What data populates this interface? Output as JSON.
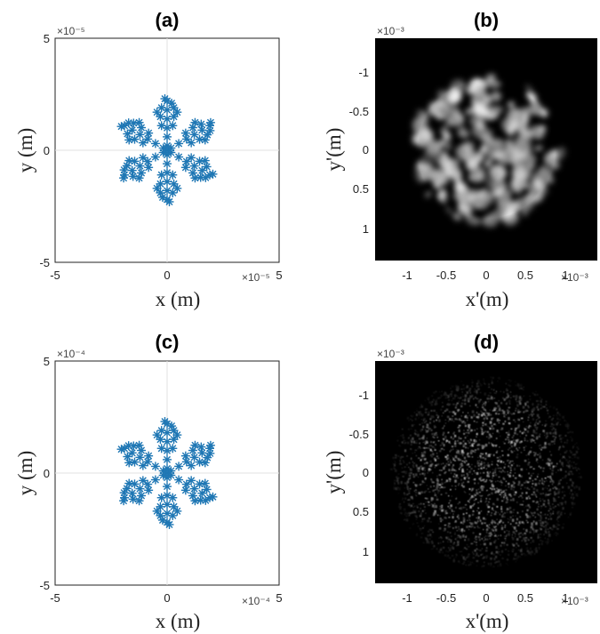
{
  "chart_data": [
    {
      "panel": "a",
      "type": "scatter",
      "title": "(a)",
      "xlabel": "x (m)",
      "ylabel": "y (m)",
      "x_exponent": "×10⁻⁵",
      "y_exponent": "×10⁻⁵",
      "xlim": [
        -5,
        5
      ],
      "ylim": [
        -5,
        5
      ],
      "xticks": [
        "-5",
        "0",
        "5"
      ],
      "yticks": [
        "5",
        "0",
        "-5"
      ],
      "marker": "asterisk",
      "color": "#1f77b4",
      "grid": true,
      "shape": "six-armed snowflake",
      "arm_length": 2.3,
      "points_per_arm": [
        [
          0.2,
          0
        ],
        [
          0.6,
          0
        ],
        [
          1.0,
          0
        ],
        [
          1.4,
          0
        ],
        [
          1.8,
          0
        ],
        [
          2.2,
          0
        ],
        [
          2.3,
          0.1
        ],
        [
          2.1,
          -0.2
        ],
        [
          1.5,
          0.3
        ],
        [
          1.5,
          -0.3
        ],
        [
          1.7,
          0.45
        ],
        [
          1.7,
          -0.45
        ],
        [
          1.1,
          0.25
        ],
        [
          1.1,
          -0.25
        ],
        [
          1.9,
          0.25
        ],
        [
          1.9,
          -0.3
        ]
      ]
    },
    {
      "panel": "b",
      "type": "heatmap",
      "title": "(b)",
      "xlabel": "x'(m)",
      "ylabel": "y'(m)",
      "x_exponent": "×10⁻³",
      "y_exponent": "×10⁻³",
      "xlim": [
        -1.4,
        1.4
      ],
      "ylim": [
        -1.4,
        1.4
      ],
      "xticks": [
        "-1",
        "-0.5",
        "0",
        "0.5",
        "1"
      ],
      "yticks": [
        "-1",
        "-0.5",
        "0",
        "0.5",
        "1"
      ],
      "colormap": "gray",
      "description_pattern": "coarse speckle within disc",
      "disc_radius": 0.95,
      "speckle_scale": 0.12
    },
    {
      "panel": "c",
      "type": "scatter",
      "title": "(c)",
      "xlabel": "x (m)",
      "ylabel": "y (m)",
      "x_exponent": "×10⁻⁴",
      "y_exponent": "×10⁻⁴",
      "xlim": [
        -5,
        5
      ],
      "ylim": [
        -5,
        5
      ],
      "xticks": [
        "-5",
        "0",
        "5"
      ],
      "yticks": [
        "5",
        "0",
        "-5"
      ],
      "marker": "asterisk",
      "color": "#1f77b4",
      "grid": true,
      "arm_length": 2.3,
      "points_per_arm": [
        [
          0.2,
          0
        ],
        [
          0.6,
          0
        ],
        [
          1.0,
          0
        ],
        [
          1.4,
          0
        ],
        [
          1.8,
          0
        ],
        [
          2.2,
          0
        ],
        [
          2.3,
          0.1
        ],
        [
          2.1,
          -0.2
        ],
        [
          1.5,
          0.3
        ],
        [
          1.5,
          -0.3
        ],
        [
          1.7,
          0.45
        ],
        [
          1.7,
          -0.45
        ],
        [
          1.1,
          0.25
        ],
        [
          1.1,
          -0.25
        ],
        [
          1.9,
          0.25
        ],
        [
          1.9,
          -0.3
        ]
      ]
    },
    {
      "panel": "d",
      "type": "heatmap",
      "title": "(d)",
      "xlabel": "x'(m)",
      "ylabel": "y'(m)",
      "x_exponent": "×10⁻³",
      "y_exponent": "×10⁻³",
      "xlim": [
        -1.4,
        1.4
      ],
      "ylim": [
        -1.4,
        1.4
      ],
      "xticks": [
        "-1",
        "-0.5",
        "0",
        "0.5",
        "1"
      ],
      "yticks": [
        "-1",
        "-0.5",
        "0",
        "0.5",
        "1"
      ],
      "colormap": "gray",
      "disc_radius": 1.2,
      "speckle_scale": 0.025
    }
  ]
}
